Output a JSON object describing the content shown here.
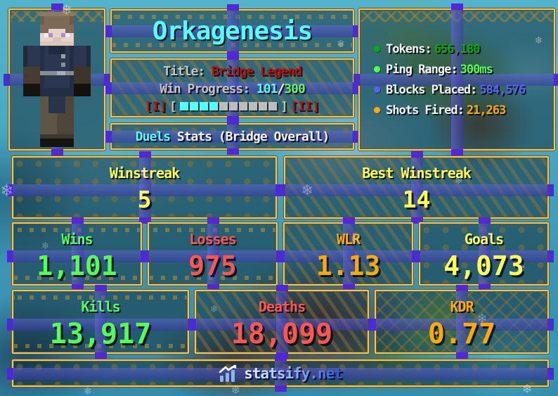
{
  "player": {
    "name": "Orkagenesis"
  },
  "title_panel": {
    "title_label": "Title:",
    "title_value": "Bridge Legend",
    "progress_label": "Win Progress:",
    "progress_current": "101",
    "progress_separator": "/",
    "progress_max": "300",
    "tier_left": "[I]",
    "tier_right": "[II]",
    "bracket_open": "[",
    "bracket_close": "]",
    "bar": {
      "filled_segments": 4,
      "total_segments": 10,
      "filled_color": "#55FFFF",
      "empty_color": "#BDBDBD"
    }
  },
  "stats_header": {
    "mode": "Duels",
    "word": "Stats",
    "scope": "(Bridge Overall)"
  },
  "info_panel": {
    "tokens": {
      "label": "Tokens:",
      "value": "656,180",
      "color": "#09A816"
    },
    "ping": {
      "label": "Ping Range:",
      "value": "300ms",
      "color": "#55FF55"
    },
    "blocks": {
      "label": "Blocks Placed:",
      "value": "584,576",
      "color": "#5860FF"
    },
    "shots": {
      "label": "Shots Fired:",
      "value": "21,263",
      "color": "#FFAA00"
    }
  },
  "stats": {
    "winstreak": {
      "label": "Winstreak",
      "value": "5",
      "color": "#FFFF55"
    },
    "best_winstreak": {
      "label": "Best Winstreak",
      "value": "14",
      "color": "#FFFF55"
    },
    "wins": {
      "label": "Wins",
      "value": "1,101",
      "color": "#55FF55"
    },
    "losses": {
      "label": "Losses",
      "value": "975",
      "color": "#FF5555"
    },
    "wlr": {
      "label": "WLR",
      "value": "1.13",
      "color": "#FFAA00"
    },
    "goals": {
      "label": "Goals",
      "value": "4,073",
      "color": "#FFFF55"
    },
    "kills": {
      "label": "Kills",
      "value": "13,917",
      "color": "#55FF55"
    },
    "deaths": {
      "label": "Deaths",
      "value": "18,099",
      "color": "#FF5555"
    },
    "kdr": {
      "label": "KDR",
      "value": "0.77",
      "color": "#FFAA00"
    }
  },
  "footer": {
    "site": "statsify.net",
    "icon": "bar-chart-with-arrow"
  },
  "colors": {
    "panel_border": "#ECC964",
    "beam": "#4B2BD2",
    "name": "#55FFFF",
    "title_value": "#B01414"
  }
}
